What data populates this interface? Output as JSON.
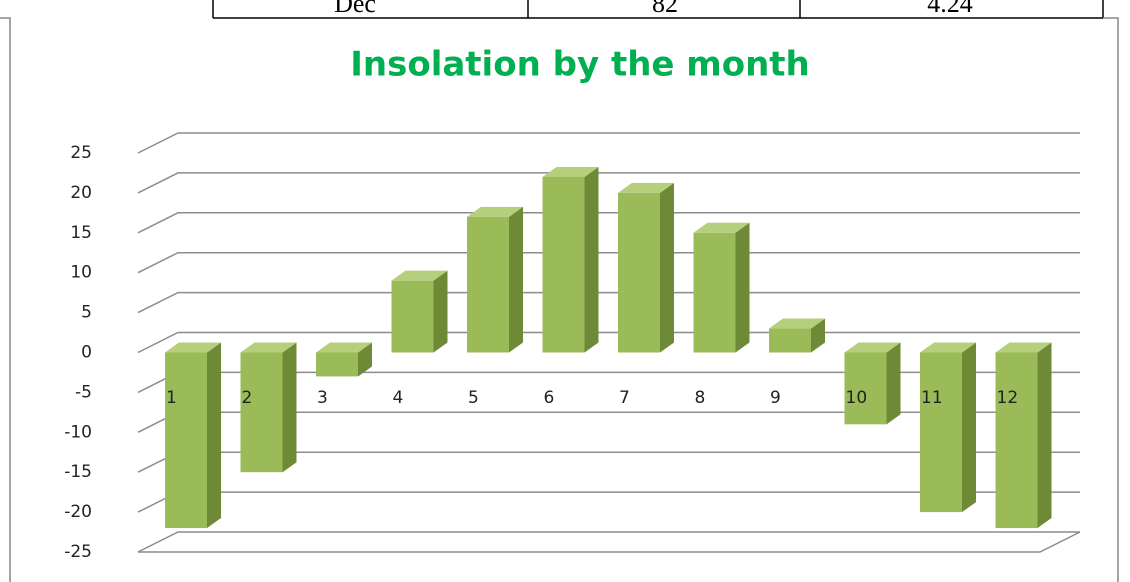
{
  "table": {
    "rows": [
      [
        "Dec",
        "82",
        "4.24"
      ]
    ]
  },
  "chart_data": {
    "type": "bar3d",
    "title": "Insolation by the month",
    "categories": [
      "1",
      "2",
      "3",
      "4",
      "5",
      "6",
      "7",
      "8",
      "9",
      "10",
      "11",
      "12"
    ],
    "values": [
      -22,
      -15,
      -3,
      9,
      17,
      22,
      20,
      15,
      3,
      -9,
      -20,
      -22
    ],
    "color": "#9bbb59",
    "ylim": [
      -25,
      25
    ],
    "yticks": [
      -25,
      -20,
      -15,
      -10,
      -5,
      0,
      5,
      10,
      15,
      20,
      25
    ],
    "grid": true
  }
}
